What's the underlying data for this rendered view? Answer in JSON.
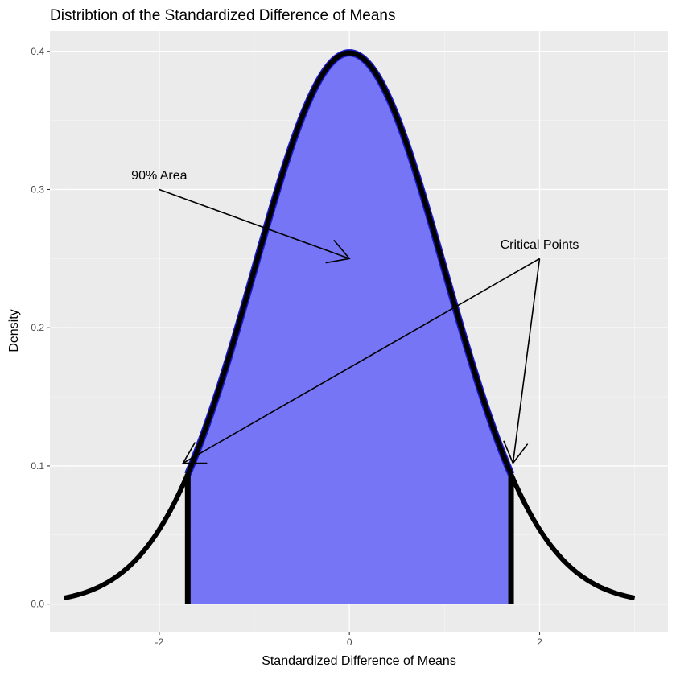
{
  "chart_data": {
    "type": "area",
    "title": "Distribtion of the Standardized Difference of Means",
    "xlabel": "Standardized Difference of Means",
    "ylabel": "Density",
    "xlim": [
      -3.15,
      3.35
    ],
    "ylim": [
      -0.02,
      0.415
    ],
    "x_ticks": [
      -2,
      0,
      2
    ],
    "x_tick_labels": [
      "-2",
      "0",
      "2"
    ],
    "y_ticks": [
      0.0,
      0.1,
      0.2,
      0.3,
      0.4
    ],
    "y_tick_labels": [
      "0.0",
      "0.1",
      "0.2",
      "0.3",
      "0.4"
    ],
    "grid": true,
    "curve": {
      "distribution": "standard normal density",
      "x_range": [
        -3,
        3
      ],
      "color": "#000000"
    },
    "shaded_area": {
      "x_range": [
        -1.7,
        1.7
      ],
      "fill": "#7575f5",
      "outline": "#1a1acc"
    },
    "critical_points": [
      -1.7,
      1.7
    ],
    "annotations": [
      {
        "text": "90% Area",
        "text_at": [
          -2.0,
          0.305
        ],
        "arrows": [
          {
            "from": [
              -2.0,
              0.3
            ],
            "to": [
              0.0,
              0.25
            ]
          }
        ]
      },
      {
        "text": "Critical Points",
        "text_at": [
          2.0,
          0.255
        ],
        "arrows": [
          {
            "from": [
              2.0,
              0.25
            ],
            "to": [
              -1.75,
              0.102
            ]
          },
          {
            "from": [
              2.0,
              0.25
            ],
            "to": [
              1.72,
              0.102
            ]
          }
        ]
      }
    ],
    "colors": {
      "panel_background": "#ebebeb",
      "grid_major": "#ffffff",
      "grid_minor": "#f5f5f5",
      "tick_text": "#4d4d4d"
    }
  }
}
